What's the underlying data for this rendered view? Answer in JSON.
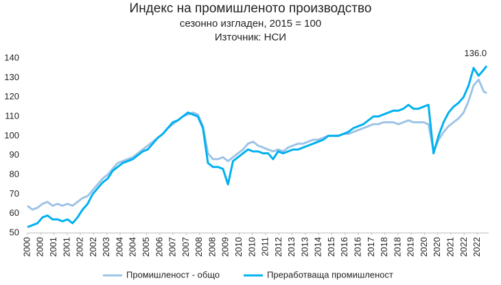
{
  "chart_data": {
    "type": "line",
    "title": "Индекс на промишленото производство",
    "subtitle": "сезонно изгладен, 2015 = 100",
    "source": "Източник: НСИ",
    "x": [
      2000,
      2000.25,
      2000.5,
      2000.75,
      2001,
      2001.25,
      2001.5,
      2001.75,
      2002,
      2002.25,
      2002.5,
      2002.75,
      2003,
      2003.25,
      2003.5,
      2003.75,
      2004,
      2004.25,
      2004.5,
      2004.75,
      2005,
      2005.25,
      2005.5,
      2005.75,
      2006,
      2006.25,
      2006.5,
      2006.75,
      2007,
      2007.25,
      2007.5,
      2007.75,
      2008,
      2008.25,
      2008.5,
      2008.75,
      2009,
      2009.25,
      2009.5,
      2009.75,
      2010,
      2010.25,
      2010.5,
      2010.75,
      2011,
      2011.25,
      2011.5,
      2011.75,
      2012,
      2012.25,
      2012.5,
      2012.75,
      2013,
      2013.25,
      2013.5,
      2013.75,
      2014,
      2014.25,
      2014.5,
      2014.75,
      2015,
      2015.25,
      2015.5,
      2015.75,
      2016,
      2016.25,
      2016.5,
      2016.75,
      2017,
      2017.25,
      2017.5,
      2017.75,
      2018,
      2018.25,
      2018.5,
      2018.75,
      2019,
      2019.25,
      2019.5,
      2019.75,
      2020,
      2020.25,
      2020.5,
      2020.75,
      2021,
      2021.25,
      2021.5,
      2021.75,
      2022,
      2022.25,
      2022.5,
      2022.75,
      2022.9
    ],
    "series": [
      {
        "name": "Промишленост - общо",
        "color": "#9dc3e6",
        "values": [
          64,
          62,
          63,
          65,
          66,
          64,
          65,
          64,
          65,
          64,
          66,
          68,
          69,
          72,
          75,
          78,
          80,
          83,
          86,
          87,
          88,
          89,
          91,
          93,
          95,
          97,
          99,
          101,
          104,
          106,
          108,
          110,
          111,
          112,
          111,
          105,
          91,
          88,
          88,
          89,
          87,
          89,
          91,
          93,
          96,
          97,
          95,
          94,
          93,
          92,
          93,
          92,
          94,
          95,
          96,
          96,
          97,
          98,
          98,
          99,
          100,
          100,
          100,
          101,
          101,
          102,
          103,
          104,
          105,
          106,
          106,
          107,
          107,
          107,
          106,
          107,
          108,
          107,
          107,
          107,
          106,
          92,
          98,
          102,
          105,
          107,
          109,
          112,
          118,
          126,
          129,
          123,
          122
        ]
      },
      {
        "name": "Преработваща промишленост",
        "color": "#00b0f0",
        "values": [
          53,
          54,
          55,
          58,
          59,
          57,
          57,
          56,
          57,
          55,
          58,
          62,
          65,
          70,
          73,
          76,
          78,
          82,
          84,
          86,
          87,
          88,
          90,
          92,
          93,
          96,
          99,
          101,
          104,
          107,
          108,
          110,
          112,
          111,
          110,
          104,
          86,
          84,
          84,
          83,
          75,
          87,
          89,
          91,
          93,
          92,
          92,
          91,
          91,
          88,
          92,
          91,
          92,
          93,
          93,
          94,
          95,
          96,
          97,
          98,
          100,
          100,
          100,
          101,
          102,
          104,
          105,
          106,
          108,
          110,
          110,
          111,
          112,
          113,
          113,
          114,
          116,
          114,
          114,
          115,
          116,
          91,
          100,
          107,
          112,
          115,
          117,
          120,
          126,
          135,
          131,
          134,
          136
        ],
        "value_labels": [
          null,
          null,
          null,
          null,
          null,
          null,
          null,
          null,
          null,
          null,
          null,
          null,
          null,
          null,
          null,
          null,
          null,
          null,
          null,
          null,
          null,
          null,
          null,
          null,
          null,
          null,
          null,
          null,
          null,
          null,
          null,
          null,
          null,
          null,
          null,
          null,
          null,
          null,
          null,
          null,
          null,
          null,
          null,
          null,
          null,
          null,
          null,
          null,
          null,
          null,
          null,
          null,
          null,
          null,
          null,
          null,
          null,
          null,
          null,
          null,
          null,
          null,
          null,
          null,
          null,
          null,
          null,
          null,
          null,
          null,
          null,
          null,
          null,
          null,
          null,
          null,
          null,
          null,
          null,
          null,
          null,
          null,
          null,
          null,
          null,
          null,
          null,
          null,
          null,
          null,
          null,
          null,
          "136.0"
        ]
      }
    ],
    "xlim": [
      2000,
      2023
    ],
    "xticks": [
      {
        "value": 2000,
        "label": "2000"
      },
      {
        "value": 2000.66,
        "label": "2000"
      },
      {
        "value": 2001.32,
        "label": "2001"
      },
      {
        "value": 2001.98,
        "label": "2001"
      },
      {
        "value": 2002.64,
        "label": "2002"
      },
      {
        "value": 2003.3,
        "label": "2002"
      },
      {
        "value": 2003.96,
        "label": "2003"
      },
      {
        "value": 2004.62,
        "label": "2004"
      },
      {
        "value": 2005.28,
        "label": "2004"
      },
      {
        "value": 2005.94,
        "label": "2005"
      },
      {
        "value": 2006.6,
        "label": "2006"
      },
      {
        "value": 2007.26,
        "label": "2007"
      },
      {
        "value": 2007.92,
        "label": "2007"
      },
      {
        "value": 2008.58,
        "label": "2008"
      },
      {
        "value": 2009.24,
        "label": "2008"
      },
      {
        "value": 2009.9,
        "label": "2009"
      },
      {
        "value": 2010.56,
        "label": "2010"
      },
      {
        "value": 2011.22,
        "label": "2010"
      },
      {
        "value": 2011.88,
        "label": "2011"
      },
      {
        "value": 2012.54,
        "label": "2012"
      },
      {
        "value": 2013.2,
        "label": "2013"
      },
      {
        "value": 2013.86,
        "label": "2013"
      },
      {
        "value": 2014.52,
        "label": "2014"
      },
      {
        "value": 2015.18,
        "label": "2015"
      },
      {
        "value": 2015.84,
        "label": "2016"
      },
      {
        "value": 2016.5,
        "label": "2016"
      },
      {
        "value": 2017.16,
        "label": "2017"
      },
      {
        "value": 2017.82,
        "label": "2018"
      },
      {
        "value": 2018.48,
        "label": "2018"
      },
      {
        "value": 2019.14,
        "label": "2019"
      },
      {
        "value": 2019.8,
        "label": "2020"
      },
      {
        "value": 2020.46,
        "label": "2020"
      },
      {
        "value": 2021.12,
        "label": "2021"
      },
      {
        "value": 2021.78,
        "label": "2022"
      },
      {
        "value": 2022.44,
        "label": "2022"
      }
    ],
    "ylim": [
      50,
      140
    ],
    "yticks": [
      50,
      60,
      70,
      80,
      90,
      100,
      110,
      120,
      130,
      140
    ],
    "grid": false,
    "legend": "bottom"
  }
}
